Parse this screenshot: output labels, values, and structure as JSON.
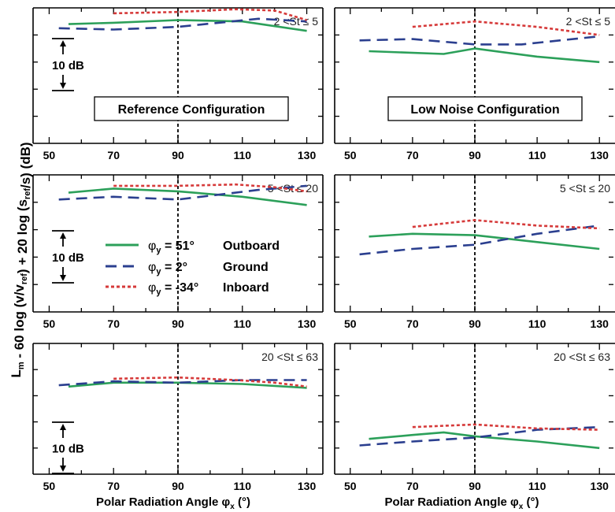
{
  "figure": {
    "ylabel_html_parts": [
      {
        "t": "L",
        "s": "n"
      },
      {
        "t": "m",
        "s": "sub"
      },
      {
        "t": " - 60 log (v/v",
        "s": "n"
      },
      {
        "t": "ref",
        "s": "sub"
      },
      {
        "t": ") + 20 log (s",
        "s": "n"
      },
      {
        "t": "ref",
        "s": "sub"
      },
      {
        "t": "/s)    (dB)",
        "s": "n"
      }
    ],
    "xlabel_main": "Polar Radiation Angle φ",
    "xlabel_sub": "x",
    "xlabel_unit": "(°)",
    "xticks": [
      "50",
      "70",
      "90",
      "110",
      "130"
    ],
    "scale_label": "10 dB",
    "config_labels": [
      "Reference Configuration",
      "Low Noise Configuration"
    ],
    "st_labels": [
      "2 <St ≤ 5",
      "5 <St ≤ 20",
      "20 <St ≤ 63"
    ],
    "legend": [
      {
        "phi": "φ",
        "sub": "y",
        "val": "=  51°",
        "name": "Outboard",
        "color": "#2ca05a",
        "dash": ""
      },
      {
        "phi": "φ",
        "sub": "y",
        "val": "=   2°",
        "name": "Ground",
        "color": "#2b3f8f",
        "dash": "14,8"
      },
      {
        "phi": "φ",
        "sub": "y",
        "val": "= -34°",
        "name": "Inboard",
        "color": "#d63a3a",
        "dash": "4,3"
      }
    ],
    "colors": {
      "outboard": "#2ca05a",
      "ground": "#2b3f8f",
      "inboard": "#d63a3a",
      "axis": "#000000"
    }
  },
  "chart_data": [
    {
      "type": "line",
      "panel": "Reference Configuration, 2 <St ≤ 5",
      "xlim": [
        45,
        135
      ],
      "ylim": [
        0,
        100
      ],
      "series": [
        {
          "name": "Outboard",
          "x": [
            56,
            70,
            90,
            110,
            130
          ],
          "y": [
            88,
            89,
            91,
            90,
            83
          ]
        },
        {
          "name": "Ground",
          "x": [
            53,
            70,
            90,
            115,
            130
          ],
          "y": [
            85,
            84,
            86,
            92,
            90
          ]
        },
        {
          "name": "Inboard",
          "x": [
            70,
            90,
            108,
            120,
            130
          ],
          "y": [
            96,
            97,
            99,
            98,
            91
          ]
        }
      ]
    },
    {
      "type": "line",
      "panel": "Low Noise Configuration, 2 <St ≤ 5",
      "xlim": [
        45,
        135
      ],
      "ylim": [
        0,
        100
      ],
      "series": [
        {
          "name": "Outboard",
          "x": [
            56,
            80,
            90,
            110,
            130
          ],
          "y": [
            68,
            66,
            70,
            64,
            60
          ]
        },
        {
          "name": "Ground",
          "x": [
            53,
            70,
            90,
            105,
            130
          ],
          "y": [
            76,
            77,
            73,
            73,
            79
          ]
        },
        {
          "name": "Inboard",
          "x": [
            70,
            90,
            110,
            130
          ],
          "y": [
            86,
            90,
            86,
            80
          ]
        }
      ]
    },
    {
      "type": "line",
      "panel": "Reference Configuration, 5 <St ≤ 20",
      "xlim": [
        45,
        135
      ],
      "ylim": [
        0,
        100
      ],
      "series": [
        {
          "name": "Outboard",
          "x": [
            56,
            70,
            90,
            110,
            130
          ],
          "y": [
            87,
            90,
            88,
            84,
            78
          ]
        },
        {
          "name": "Ground",
          "x": [
            53,
            70,
            90,
            115,
            130
          ],
          "y": [
            82,
            84,
            82,
            89,
            92
          ]
        },
        {
          "name": "Inboard",
          "x": [
            70,
            90,
            108,
            120,
            130
          ],
          "y": [
            92,
            92,
            93,
            91,
            88
          ]
        }
      ]
    },
    {
      "type": "line",
      "panel": "Low Noise Configuration, 5 <St ≤ 20",
      "xlim": [
        45,
        135
      ],
      "ylim": [
        0,
        100
      ],
      "series": [
        {
          "name": "Outboard",
          "x": [
            56,
            70,
            90,
            110,
            130
          ],
          "y": [
            55,
            57,
            56,
            51,
            46
          ]
        },
        {
          "name": "Ground",
          "x": [
            53,
            70,
            90,
            110,
            130
          ],
          "y": [
            42,
            46,
            49,
            57,
            63
          ]
        },
        {
          "name": "Inboard",
          "x": [
            70,
            90,
            110,
            130
          ],
          "y": [
            62,
            67,
            63,
            61
          ]
        }
      ]
    },
    {
      "type": "line",
      "panel": "Reference Configuration, 20 <St ≤ 63",
      "xlim": [
        45,
        135
      ],
      "ylim": [
        0,
        100
      ],
      "series": [
        {
          "name": "Outboard",
          "x": [
            56,
            70,
            90,
            110,
            130
          ],
          "y": [
            67,
            70,
            70,
            69,
            66
          ]
        },
        {
          "name": "Ground",
          "x": [
            53,
            70,
            90,
            110,
            130
          ],
          "y": [
            68,
            71,
            70,
            72,
            72
          ]
        },
        {
          "name": "Inboard",
          "x": [
            70,
            90,
            108,
            120,
            130
          ],
          "y": [
            73,
            74,
            72,
            70,
            67
          ]
        }
      ]
    },
    {
      "type": "line",
      "panel": "Low Noise Configuration, 20 <St ≤ 63",
      "xlim": [
        45,
        135
      ],
      "ylim": [
        0,
        100
      ],
      "series": [
        {
          "name": "Outboard",
          "x": [
            56,
            70,
            80,
            90,
            110,
            130
          ],
          "y": [
            27,
            30,
            32,
            29,
            25,
            20
          ]
        },
        {
          "name": "Ground",
          "x": [
            53,
            70,
            90,
            110,
            130
          ],
          "y": [
            22,
            25,
            28,
            34,
            36
          ]
        },
        {
          "name": "Inboard",
          "x": [
            70,
            90,
            110,
            130
          ],
          "y": [
            36,
            38,
            35,
            34
          ]
        }
      ]
    }
  ]
}
